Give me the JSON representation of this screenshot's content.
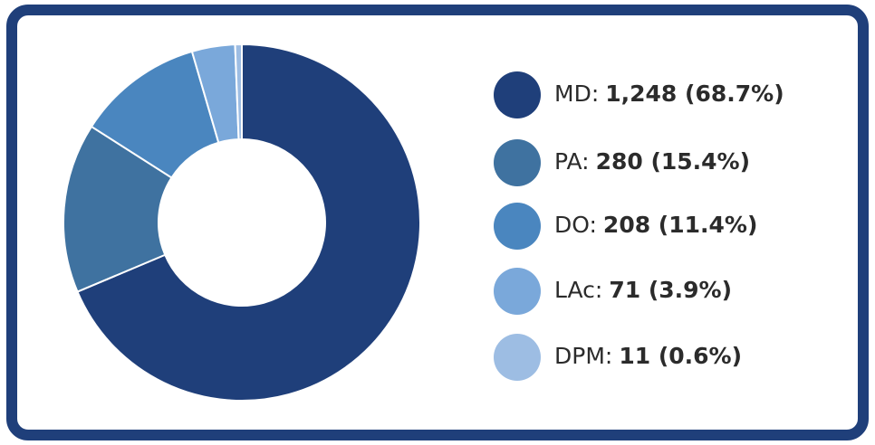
{
  "chart_data": {
    "type": "pie",
    "donut": true,
    "categories": [
      "MD:",
      "PA:",
      "DO:",
      "LAc:",
      "DPM:"
    ],
    "values": [
      1248,
      280,
      208,
      71,
      11
    ],
    "value_labels": [
      "1,248 (68.7%)",
      "280 (15.4%)",
      "208 (11.4%)",
      "71 (3.9%)",
      "11 (0.6%)"
    ],
    "colors": [
      "#1f3f7a",
      "#3f72a0",
      "#4a86bf",
      "#7aa8da",
      "#9dbde3"
    ],
    "legend": "right"
  }
}
